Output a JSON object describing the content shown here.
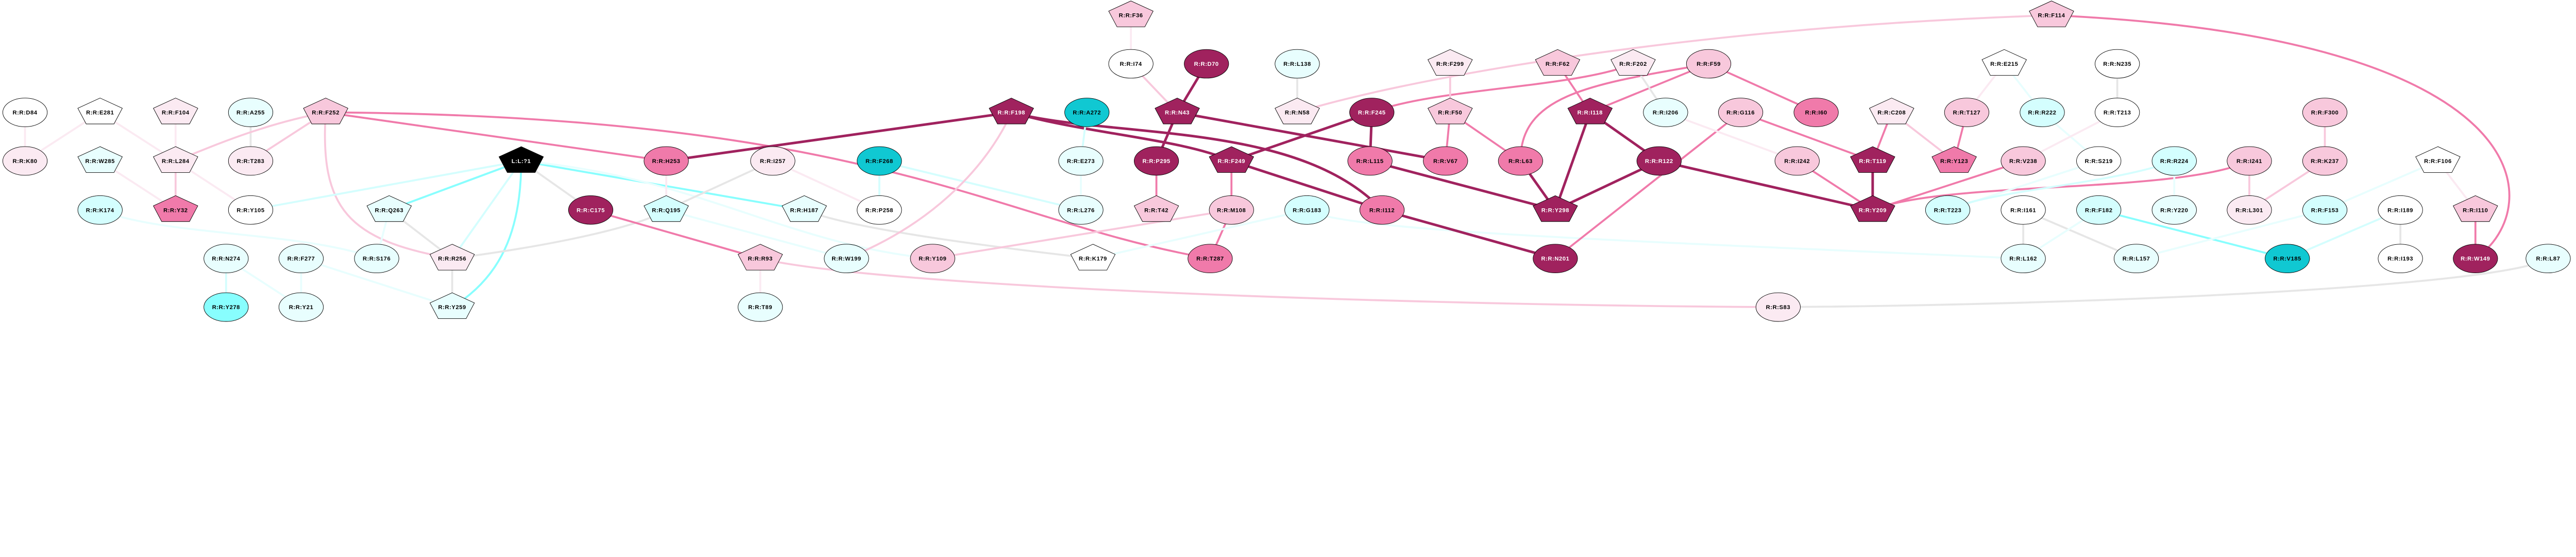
{
  "palette": {
    "white": "#ffffff",
    "light_pink": "#fbeaf2",
    "pink": "#f8c8dc",
    "medium_pink": "#f07aaa",
    "dark_magenta": "#a0225e",
    "light_cyan": "#e8fefe",
    "cyan": "#d4fefe",
    "bright_cyan": "#88fefe",
    "teal": "#10c8d2",
    "black": "#000000",
    "grey_edge": "#e6e6e6"
  },
  "nodes": [
    {
      "label": "R:R:D84",
      "shape": "ellipse",
      "fill": "#ffffff"
    },
    {
      "label": "R:R:E281",
      "shape": "pentagon",
      "fill": "#ffffff"
    },
    {
      "label": "R:R:F104",
      "shape": "pentagon",
      "fill": "#fbeaf2"
    },
    {
      "label": "R:R:A255",
      "shape": "ellipse",
      "fill": "#e8fefe"
    },
    {
      "label": "R:R:F252",
      "shape": "pentagon",
      "fill": "#f8c8dc"
    },
    {
      "label": "R:R:K80",
      "shape": "ellipse",
      "fill": "#fbeaf2"
    },
    {
      "label": "R:R:W285",
      "shape": "pentagon",
      "fill": "#e8fefe"
    },
    {
      "label": "R:R:L284",
      "shape": "pentagon",
      "fill": "#fbeaf2"
    },
    {
      "label": "R:R:T283",
      "shape": "ellipse",
      "fill": "#fbeaf2"
    },
    {
      "label": "R:R:K174",
      "shape": "ellipse",
      "fill": "#d4fefe"
    },
    {
      "label": "R:R:Y32",
      "shape": "pentagon",
      "fill": "#f07aaa"
    },
    {
      "label": "R:R:Y105",
      "shape": "ellipse",
      "fill": "#ffffff"
    },
    {
      "label": "R:R:N274",
      "shape": "ellipse",
      "fill": "#e8fefe"
    },
    {
      "label": "R:R:F277",
      "shape": "ellipse",
      "fill": "#e8fefe"
    },
    {
      "label": "R:R:Y278",
      "shape": "ellipse",
      "fill": "#88fefe"
    },
    {
      "label": "R:R:Y21",
      "shape": "ellipse",
      "fill": "#e8fefe"
    },
    {
      "label": "L:L:?1",
      "shape": "pentagon",
      "fill": "#000000"
    },
    {
      "label": "R:R:Q263",
      "shape": "pentagon",
      "fill": "#e8fefe"
    },
    {
      "label": "R:R:C175",
      "shape": "ellipse",
      "fill": "#a0225e"
    },
    {
      "label": "R:R:S176",
      "shape": "ellipse",
      "fill": "#e8fefe"
    },
    {
      "label": "R:R:R256",
      "shape": "pentagon",
      "fill": "#fbeaf2"
    },
    {
      "label": "R:R:Y259",
      "shape": "pentagon",
      "fill": "#e8fefe"
    },
    {
      "label": "R:R:H253",
      "shape": "ellipse",
      "fill": "#f07aaa"
    },
    {
      "label": "R:R:I257",
      "shape": "ellipse",
      "fill": "#fbeaf2"
    },
    {
      "label": "R:R:F268",
      "shape": "ellipse",
      "fill": "#10c8d2"
    },
    {
      "label": "R:R:Q195",
      "shape": "pentagon",
      "fill": "#d4fefe"
    },
    {
      "label": "R:R:H187",
      "shape": "pentagon",
      "fill": "#e8fefe"
    },
    {
      "label": "R:R:P258",
      "shape": "ellipse",
      "fill": "#ffffff"
    },
    {
      "label": "R:R:R93",
      "shape": "pentagon",
      "fill": "#f8c8dc"
    },
    {
      "label": "R:R:W199",
      "shape": "ellipse",
      "fill": "#e8fefe"
    },
    {
      "label": "R:R:Y109",
      "shape": "ellipse",
      "fill": "#f8c8dc"
    },
    {
      "label": "R:R:T89",
      "shape": "ellipse",
      "fill": "#e8fefe"
    },
    {
      "label": "R:R:F36",
      "shape": "pentagon",
      "fill": "#f8c8dc"
    },
    {
      "label": "R:R:I74",
      "shape": "ellipse",
      "fill": "#ffffff"
    },
    {
      "label": "R:R:D70",
      "shape": "ellipse",
      "fill": "#a0225e"
    },
    {
      "label": "R:R:L138",
      "shape": "ellipse",
      "fill": "#e8fefe"
    },
    {
      "label": "R:R:F198",
      "shape": "pentagon",
      "fill": "#a0225e"
    },
    {
      "label": "R:R:A272",
      "shape": "ellipse",
      "fill": "#10c8d2"
    },
    {
      "label": "R:R:N43",
      "shape": "pentagon",
      "fill": "#a0225e"
    },
    {
      "label": "R:R:N58",
      "shape": "pentagon",
      "fill": "#fbeaf2"
    },
    {
      "label": "R:R:E273",
      "shape": "ellipse",
      "fill": "#e8fefe"
    },
    {
      "label": "R:R:P295",
      "shape": "ellipse",
      "fill": "#a0225e"
    },
    {
      "label": "R:R:F249",
      "shape": "pentagon",
      "fill": "#a0225e"
    },
    {
      "label": "R:R:L276",
      "shape": "ellipse",
      "fill": "#e8fefe"
    },
    {
      "label": "R:R:T42",
      "shape": "pentagon",
      "fill": "#f8c8dc"
    },
    {
      "label": "R:R:M108",
      "shape": "ellipse",
      "fill": "#f8c8dc"
    },
    {
      "label": "R:R:G183",
      "shape": "ellipse",
      "fill": "#d4fefe"
    },
    {
      "label": "R:R:K179",
      "shape": "pentagon",
      "fill": "#ffffff"
    },
    {
      "label": "R:R:T287",
      "shape": "ellipse",
      "fill": "#f07aaa"
    },
    {
      "label": "R:R:F299",
      "shape": "pentagon",
      "fill": "#fbeaf2"
    },
    {
      "label": "R:R:F62",
      "shape": "pentagon",
      "fill": "#f8c8dc"
    },
    {
      "label": "R:R:F202",
      "shape": "pentagon",
      "fill": "#fbeaf2"
    },
    {
      "label": "R:R:F245",
      "shape": "ellipse",
      "fill": "#a0225e"
    },
    {
      "label": "R:R:F50",
      "shape": "pentagon",
      "fill": "#f8c8dc"
    },
    {
      "label": "R:R:I118",
      "shape": "pentagon",
      "fill": "#a0225e"
    },
    {
      "label": "R:R:L115",
      "shape": "ellipse",
      "fill": "#f07aaa"
    },
    {
      "label": "R:R:V67",
      "shape": "ellipse",
      "fill": "#f07aaa"
    },
    {
      "label": "R:R:L63",
      "shape": "ellipse",
      "fill": "#f07aaa"
    },
    {
      "label": "R:R:I112",
      "shape": "ellipse",
      "fill": "#f07aaa"
    },
    {
      "label": "R:R:Y298",
      "shape": "pentagon",
      "fill": "#a0225e"
    },
    {
      "label": "R:R:N201",
      "shape": "ellipse",
      "fill": "#a0225e"
    },
    {
      "label": "R:R:F59",
      "shape": "ellipse",
      "fill": "#f8c8dc"
    },
    {
      "label": "R:R:I206",
      "shape": "ellipse",
      "fill": "#e8fefe"
    },
    {
      "label": "R:R:G116",
      "shape": "ellipse",
      "fill": "#f8c8dc"
    },
    {
      "label": "R:R:I60",
      "shape": "ellipse",
      "fill": "#f07aaa"
    },
    {
      "label": "R:R:C208",
      "shape": "pentagon",
      "fill": "#fbeaf2"
    },
    {
      "label": "R:R:R122",
      "shape": "ellipse",
      "fill": "#a0225e"
    },
    {
      "label": "R:R:I242",
      "shape": "ellipse",
      "fill": "#f8c8dc"
    },
    {
      "label": "R:R:T119",
      "shape": "pentagon",
      "fill": "#a0225e"
    },
    {
      "label": "R:R:Y123",
      "shape": "pentagon",
      "fill": "#f07aaa"
    },
    {
      "label": "R:R:Y209",
      "shape": "pentagon",
      "fill": "#a0225e"
    },
    {
      "label": "R:R:T223",
      "shape": "ellipse",
      "fill": "#d4fefe"
    },
    {
      "label": "R:R:S83",
      "shape": "ellipse",
      "fill": "#fbeaf2"
    },
    {
      "label": "R:R:F114",
      "shape": "pentagon",
      "fill": "#f8c8dc"
    },
    {
      "label": "R:R:E215",
      "shape": "pentagon",
      "fill": "#ffffff"
    },
    {
      "label": "R:R:N235",
      "shape": "ellipse",
      "fill": "#ffffff"
    },
    {
      "label": "R:R:T127",
      "shape": "ellipse",
      "fill": "#f8c8dc"
    },
    {
      "label": "R:R:R222",
      "shape": "ellipse",
      "fill": "#d4fefe"
    },
    {
      "label": "R:R:T213",
      "shape": "ellipse",
      "fill": "#ffffff"
    },
    {
      "label": "R:R:V238",
      "shape": "ellipse",
      "fill": "#f8c8dc"
    },
    {
      "label": "R:R:S219",
      "shape": "ellipse",
      "fill": "#ffffff"
    },
    {
      "label": "R:R:R224",
      "shape": "ellipse",
      "fill": "#d4fefe"
    },
    {
      "label": "R:R:I241",
      "shape": "ellipse",
      "fill": "#f8c8dc"
    },
    {
      "label": "R:R:I161",
      "shape": "ellipse",
      "fill": "#ffffff"
    },
    {
      "label": "R:R:F182",
      "shape": "ellipse",
      "fill": "#d4fefe"
    },
    {
      "label": "R:R:Y220",
      "shape": "ellipse",
      "fill": "#e8fefe"
    },
    {
      "label": "R:R:L301",
      "shape": "ellipse",
      "fill": "#fbeaf2"
    },
    {
      "label": "R:R:L162",
      "shape": "ellipse",
      "fill": "#e8fefe"
    },
    {
      "label": "R:R:L157",
      "shape": "ellipse",
      "fill": "#e8fefe"
    },
    {
      "label": "R:R:V185",
      "shape": "ellipse",
      "fill": "#10c8d2"
    },
    {
      "label": "R:R:F300",
      "shape": "ellipse",
      "fill": "#f8c8dc"
    },
    {
      "label": "R:R:K237",
      "shape": "ellipse",
      "fill": "#f8c8dc"
    },
    {
      "label": "R:R:F106",
      "shape": "pentagon",
      "fill": "#ffffff"
    },
    {
      "label": "R:R:F153",
      "shape": "ellipse",
      "fill": "#d4fefe"
    },
    {
      "label": "R:R:I189",
      "shape": "ellipse",
      "fill": "#ffffff"
    },
    {
      "label": "R:R:I110",
      "shape": "pentagon",
      "fill": "#f8c8dc"
    },
    {
      "label": "R:R:I193",
      "shape": "ellipse",
      "fill": "#ffffff"
    },
    {
      "label": "R:R:W149",
      "shape": "ellipse",
      "fill": "#a0225e"
    },
    {
      "label": "R:R:L87",
      "shape": "ellipse",
      "fill": "#e8fefe"
    }
  ],
  "edges": [
    [
      "R:R:D84",
      "R:R:K80",
      "#fbeaf2"
    ],
    [
      "R:R:E281",
      "R:R:K80",
      "#fbeaf2"
    ],
    [
      "R:R:E281",
      "R:R:L284",
      "#fbeaf2"
    ],
    [
      "R:R:F104",
      "R:R:L284",
      "#fbeaf2"
    ],
    [
      "R:R:A255",
      "R:R:T283",
      "#e6e6e6"
    ],
    [
      "R:R:F252",
      "R:R:L284",
      "#f8c8dc"
    ],
    [
      "R:R:F252",
      "R:R:T283",
      "#f8c8dc"
    ],
    [
      "R:R:F252",
      "R:R:R256",
      "#f8c8dc"
    ],
    [
      "R:R:W285",
      "R:R:Y32",
      "#fbeaf2"
    ],
    [
      "R:R:L284",
      "R:R:Y32",
      "#f8c8dc"
    ],
    [
      "R:R:L284",
      "R:R:Y105",
      "#fbeaf2"
    ],
    [
      "R:R:Y105",
      "L:L:?1",
      "#d4fefe"
    ],
    [
      "R:R:K174",
      "R:R:S176",
      "#e8fefe"
    ],
    [
      "R:R:F277",
      "R:R:Y259",
      "#e8fefe"
    ],
    [
      "R:R:N274",
      "R:R:Y278",
      "#d4fefe"
    ],
    [
      "R:R:N274",
      "R:R:Y21",
      "#e8fefe"
    ],
    [
      "R:R:F277",
      "R:R:Y21",
      "#e8fefe"
    ],
    [
      "R:R:F252",
      "R:R:H253",
      "#f07aaa"
    ],
    [
      "R:R:F252",
      "R:R:T287",
      "#f07aaa"
    ],
    [
      "L:L:?1",
      "R:R:Q263",
      "#88fefe"
    ],
    [
      "L:L:?1",
      "R:R:R256",
      "#d4fefe"
    ],
    [
      "L:L:?1",
      "R:R:Y259",
      "#88fefe"
    ],
    [
      "L:L:?1",
      "R:R:C175",
      "#e6e6e6"
    ],
    [
      "L:L:?1",
      "R:R:H187",
      "#88fefe"
    ],
    [
      "L:L:?1",
      "R:R:Y109",
      "#e8fefe"
    ],
    [
      "R:R:Q195",
      "R:R:W199",
      "#e8fefe"
    ],
    [
      "R:R:Q263",
      "R:R:S176",
      "#e8fefe"
    ],
    [
      "R:R:Q263",
      "R:R:R256",
      "#e6e6e6"
    ],
    [
      "R:R:R256",
      "R:R:Y259",
      "#e6e6e6"
    ],
    [
      "R:R:R256",
      "R:R:Q195",
      "#e6e6e6"
    ],
    [
      "R:R:Q195",
      "R:R:I257",
      "#e6e6e6"
    ],
    [
      "R:R:H253",
      "R:R:Q195",
      "#fbeaf2"
    ],
    [
      "R:R:C175",
      "R:R:R93",
      "#f07aaa"
    ],
    [
      "R:R:I257",
      "R:R:P258",
      "#fbeaf2"
    ],
    [
      "R:R:F268",
      "R:R:P258",
      "#d4fefe"
    ],
    [
      "R:R:F268",
      "R:R:L276",
      "#d4fefe"
    ],
    [
      "R:R:H187",
      "R:R:K179",
      "#e6e6e6"
    ],
    [
      "R:R:R93",
      "R:R:T89",
      "#fbeaf2"
    ],
    [
      "R:R:R93",
      "R:R:S83",
      "#f8c8dc"
    ],
    [
      "R:R:W199",
      "R:R:F198",
      "#f8c8dc"
    ],
    [
      "R:R:Y109",
      "R:R:M108",
      "#f8c8dc"
    ],
    [
      "R:R:F198",
      "R:R:H253",
      "#a0225e"
    ],
    [
      "R:R:F198",
      "R:R:F249",
      "#a0225e"
    ],
    [
      "R:R:F198",
      "R:R:I112",
      "#a0225e"
    ],
    [
      "R:R:N43",
      "R:R:V67",
      "#a0225e"
    ],
    [
      "R:R:F249",
      "R:R:F245",
      "#a0225e"
    ],
    [
      "R:R:F249",
      "R:R:I112",
      "#a0225e"
    ],
    [
      "R:R:D70",
      "R:R:N43",
      "#a0225e"
    ],
    [
      "R:R:I74",
      "R:R:N43",
      "#f8c8dc"
    ],
    [
      "R:R:N43",
      "R:R:P295",
      "#a0225e"
    ],
    [
      "R:R:P295",
      "R:R:T42",
      "#f07aaa"
    ],
    [
      "R:R:F249",
      "R:R:M108",
      "#f07aaa"
    ],
    [
      "R:R:M108",
      "R:R:T287",
      "#f07aaa"
    ],
    [
      "R:R:A272",
      "R:R:E273",
      "#d4fefe"
    ],
    [
      "R:R:E273",
      "R:R:L276",
      "#e8fefe"
    ],
    [
      "R:R:F36",
      "R:R:I74",
      "#fbeaf2"
    ],
    [
      "R:R:K179",
      "R:R:G183",
      "#e8fefe"
    ],
    [
      "R:R:G183",
      "R:R:L162",
      "#e8fefe"
    ],
    [
      "R:R:L138",
      "R:R:N58",
      "#e6e6e6"
    ],
    [
      "R:R:N58",
      "R:R:F114",
      "#f8c8dc"
    ],
    [
      "R:R:F245",
      "R:R:F202",
      "#f07aaa"
    ],
    [
      "R:R:L63",
      "R:R:F59",
      "#f07aaa"
    ],
    [
      "R:R:I118",
      "R:R:F59",
      "#f07aaa"
    ],
    [
      "R:R:F245",
      "R:R:L115",
      "#a0225e"
    ],
    [
      "R:R:F299",
      "R:R:F50",
      "#f8c8dc"
    ],
    [
      "R:R:F50",
      "R:R:V67",
      "#f07aaa"
    ],
    [
      "R:R:F50",
      "R:R:L63",
      "#f07aaa"
    ],
    [
      "R:R:F62",
      "R:R:I118",
      "#f07aaa"
    ],
    [
      "R:R:L115",
      "R:R:Y298",
      "#a0225e"
    ],
    [
      "R:R:L63",
      "R:R:Y298",
      "#a0225e"
    ],
    [
      "R:R:I118",
      "R:R:Y298",
      "#a0225e"
    ],
    [
      "R:R:I118",
      "R:R:R122",
      "#a0225e"
    ],
    [
      "R:R:R122",
      "R:R:Y298",
      "#a0225e"
    ],
    [
      "R:R:I112",
      "R:R:N201",
      "#a0225e"
    ],
    [
      "R:R:N201",
      "R:R:G116",
      "#f07aaa"
    ],
    [
      "R:R:F202",
      "R:R:I206",
      "#e6e6e6"
    ],
    [
      "R:R:F59",
      "R:R:I60",
      "#f07aaa"
    ],
    [
      "R:R:I206",
      "R:R:I242",
      "#fbeaf2"
    ],
    [
      "R:R:G116",
      "R:R:T119",
      "#f07aaa"
    ],
    [
      "R:R:R122",
      "R:R:Y209",
      "#a0225e"
    ],
    [
      "R:R:I242",
      "R:R:Y209",
      "#f07aaa"
    ],
    [
      "R:R:T119",
      "R:R:Y209",
      "#a0225e"
    ],
    [
      "R:R:C208",
      "R:R:T119",
      "#f07aaa"
    ],
    [
      "R:R:C208",
      "R:R:Y123",
      "#f8c8dc"
    ],
    [
      "R:R:Y209",
      "R:R:I241",
      "#f07aaa"
    ],
    [
      "R:R:Y209",
      "R:R:V238",
      "#f07aaa"
    ],
    [
      "R:R:T127",
      "R:R:Y123",
      "#f07aaa"
    ],
    [
      "R:R:E215",
      "R:R:T127",
      "#fbeaf2"
    ],
    [
      "R:R:E215",
      "R:R:R222",
      "#e8fefe"
    ],
    [
      "R:R:R222",
      "R:R:S219",
      "#e8fefe"
    ],
    [
      "R:R:N235",
      "R:R:T213",
      "#e6e6e6"
    ],
    [
      "R:R:T213",
      "R:R:V238",
      "#fbeaf2"
    ],
    [
      "R:R:S219",
      "R:R:T223",
      "#e8fefe"
    ],
    [
      "R:R:R224",
      "R:R:T223",
      "#d4fefe"
    ],
    [
      "R:R:R224",
      "R:R:Y220",
      "#e8fefe"
    ],
    [
      "R:R:I241",
      "R:R:L301",
      "#f8c8dc"
    ],
    [
      "R:R:K237",
      "R:R:L301",
      "#f8c8dc"
    ],
    [
      "R:R:F300",
      "R:R:K237",
      "#f8c8dc"
    ],
    [
      "R:R:I161",
      "R:R:L162",
      "#e6e6e6"
    ],
    [
      "R:R:I161",
      "R:R:L157",
      "#e6e6e6"
    ],
    [
      "R:R:F182",
      "R:R:L162",
      "#e8fefe"
    ],
    [
      "R:R:F182",
      "R:R:V185",
      "#88fefe"
    ],
    [
      "R:R:L157",
      "R:R:F153",
      "#e8fefe"
    ],
    [
      "R:R:F106",
      "R:R:F153",
      "#e8fefe"
    ],
    [
      "R:R:I189",
      "R:R:V185",
      "#d4fefe"
    ],
    [
      "R:R:I189",
      "R:R:I193",
      "#e6e6e6"
    ],
    [
      "R:R:F106",
      "R:R:I110",
      "#fbeaf2"
    ],
    [
      "R:R:I110",
      "R:R:W149",
      "#f07aaa"
    ],
    [
      "R:R:F114",
      "R:R:W149",
      "#f07aaa"
    ],
    [
      "R:R:L87",
      "R:R:S83",
      "#e6e6e6"
    ]
  ]
}
